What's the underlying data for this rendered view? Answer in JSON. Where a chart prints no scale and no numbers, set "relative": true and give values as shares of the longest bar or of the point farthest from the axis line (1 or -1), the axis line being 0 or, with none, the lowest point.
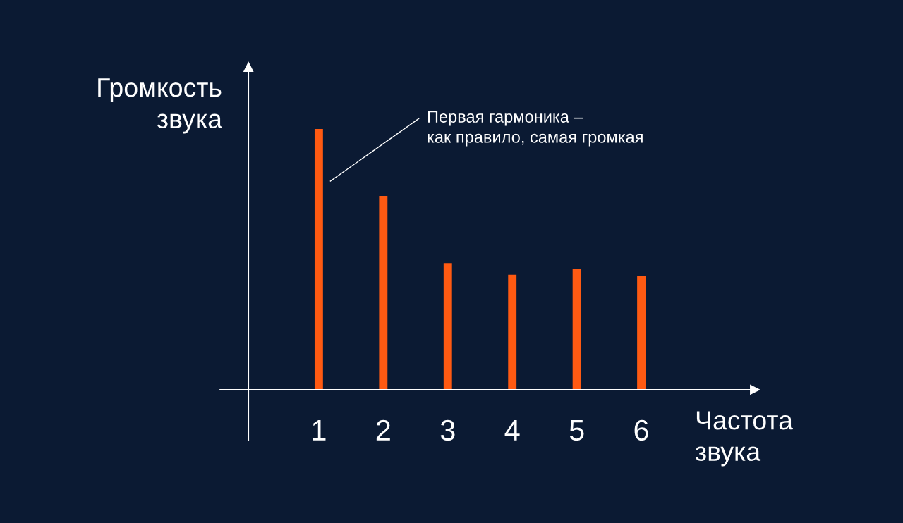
{
  "chart_data": {
    "type": "bar",
    "relative": true,
    "xlabel": "Частота\nзвука",
    "ylabel": "Громкость\nзвука",
    "categories": [
      "1",
      "2",
      "3",
      "4",
      "5",
      "6"
    ],
    "values": [
      1,
      0.743,
      0.486,
      0.441,
      0.462,
      0.435
    ],
    "color": "#ff5a12",
    "grid": false,
    "legend": false,
    "annotations": [
      "Первая гармоника –\nкак правило, самая громкая"
    ]
  }
}
